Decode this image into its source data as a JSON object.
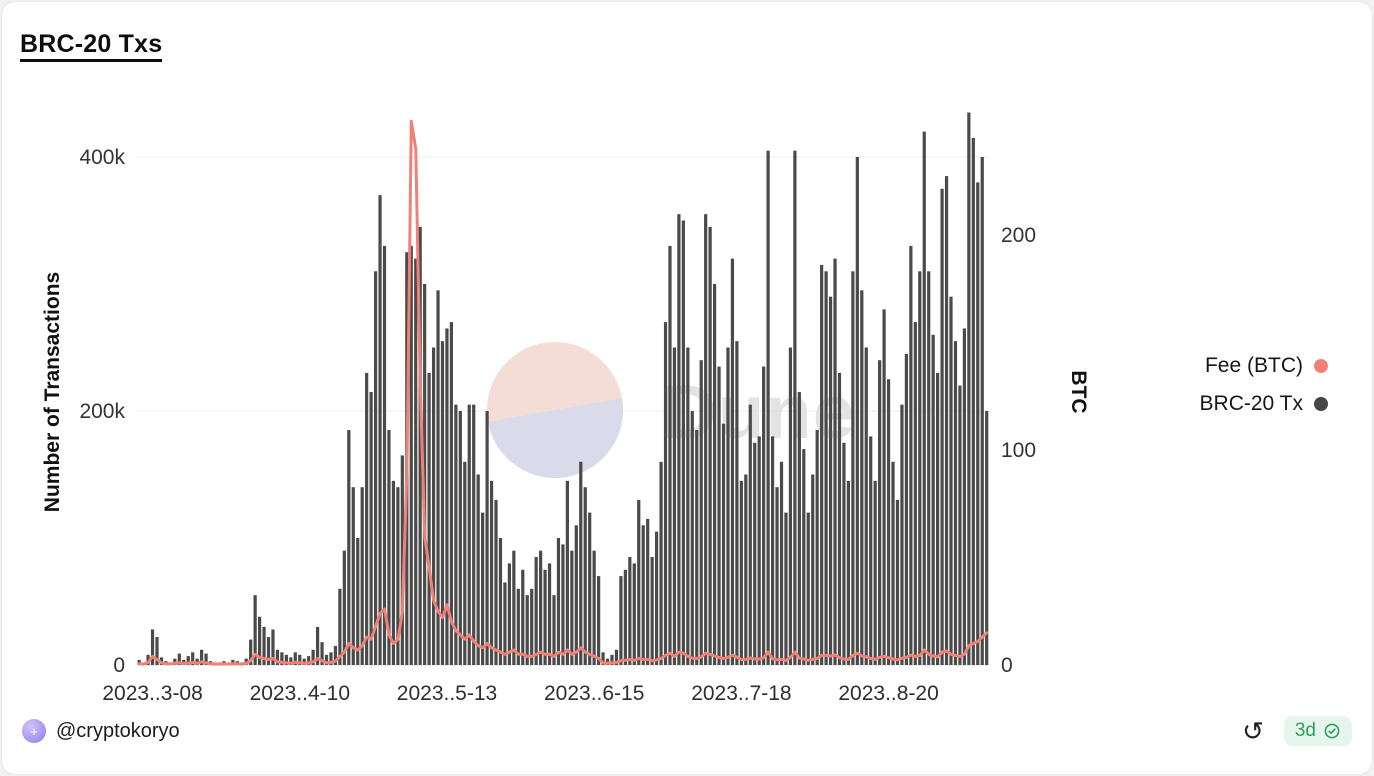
{
  "title": "BRC-20 Txs",
  "chart_data": {
    "type": "bar",
    "subtype": "dual-axis daily bars with overlaid line",
    "title": "BRC-20 Txs",
    "x_start_date": "2023-03-05",
    "x_frequency": "daily",
    "x_ticks": [
      {
        "label": "2023..3-08",
        "day_index": 3
      },
      {
        "label": "2023..4-10",
        "day_index": 36
      },
      {
        "label": "2023..5-13",
        "day_index": 69
      },
      {
        "label": "2023..6-15",
        "day_index": 102
      },
      {
        "label": "2023..7-18",
        "day_index": 135
      },
      {
        "label": "2023..8-20",
        "day_index": 168
      }
    ],
    "left_axis": {
      "label": "Number of Transactions",
      "tick_labels": [
        "0",
        "200k",
        "400k"
      ],
      "tick_values": [
        0,
        200000,
        400000
      ],
      "max": 440000
    },
    "right_axis": {
      "label": "BTC",
      "tick_labels": [
        "0",
        "100",
        "200"
      ],
      "tick_values": [
        0,
        100,
        200
      ],
      "max": 260
    },
    "legend": [
      {
        "label": "Fee (BTC)",
        "color": "#ef8177"
      },
      {
        "label": "BRC-20 Tx",
        "color": "#474747"
      }
    ],
    "grid": {
      "horizontal": true,
      "vertical": false
    },
    "watermark": "Dune",
    "watermark_colors": {
      "circle_top": "#f4ddd6",
      "circle_bottom": "#d9daea"
    },
    "series": [
      {
        "name": "BRC-20 Tx",
        "type": "bar",
        "axis": "left",
        "color": "#4a4a4a",
        "values": [
          4000,
          2000,
          8000,
          28000,
          22000,
          6000,
          3000,
          2000,
          5000,
          9000,
          4000,
          7000,
          10000,
          5000,
          12000,
          9000,
          3000,
          2000,
          2000,
          3000,
          2000,
          4000,
          3000,
          2000,
          5000,
          20000,
          55000,
          38000,
          30000,
          22000,
          28000,
          12000,
          10000,
          8000,
          6000,
          10000,
          8000,
          5000,
          7000,
          12000,
          30000,
          18000,
          8000,
          10000,
          15000,
          60000,
          90000,
          185000,
          140000,
          100000,
          140000,
          230000,
          215000,
          310000,
          370000,
          330000,
          185000,
          145000,
          140000,
          165000,
          325000,
          330000,
          320000,
          345000,
          300000,
          230000,
          250000,
          295000,
          255000,
          265000,
          270000,
          205000,
          200000,
          160000,
          205000,
          205000,
          150000,
          120000,
          200000,
          145000,
          130000,
          100000,
          65000,
          80000,
          90000,
          60000,
          75000,
          55000,
          60000,
          85000,
          90000,
          75000,
          80000,
          55000,
          100000,
          95000,
          145000,
          90000,
          110000,
          160000,
          140000,
          120000,
          90000,
          70000,
          10000,
          5000,
          8000,
          12000,
          70000,
          75000,
          85000,
          80000,
          130000,
          110000,
          115000,
          85000,
          105000,
          160000,
          270000,
          330000,
          250000,
          355000,
          350000,
          250000,
          200000,
          185000,
          240000,
          355000,
          345000,
          300000,
          235000,
          190000,
          250000,
          320000,
          255000,
          145000,
          150000,
          205000,
          175000,
          180000,
          235000,
          405000,
          180000,
          140000,
          160000,
          120000,
          250000,
          405000,
          215000,
          170000,
          120000,
          150000,
          185000,
          315000,
          310000,
          290000,
          320000,
          230000,
          175000,
          145000,
          310000,
          400000,
          295000,
          250000,
          180000,
          145000,
          240000,
          280000,
          225000,
          160000,
          130000,
          205000,
          245000,
          330000,
          270000,
          310000,
          420000,
          310000,
          260000,
          230000,
          375000,
          385000,
          290000,
          255000,
          220000,
          265000,
          435000,
          415000,
          380000,
          400000,
          200000
        ]
      },
      {
        "name": "Fee (BTC)",
        "type": "line",
        "axis": "right",
        "color": "#ef8177",
        "values": [
          0.5,
          0.4,
          1.2,
          4,
          2.5,
          1,
          0.6,
          0.5,
          0.8,
          1,
          0.7,
          0.9,
          1.2,
          0.8,
          1.5,
          1,
          0.5,
          0.4,
          0.4,
          0.5,
          0.4,
          0.6,
          0.5,
          0.4,
          0.8,
          2,
          5,
          3.5,
          3,
          2.5,
          3,
          1.5,
          1.2,
          1,
          0.8,
          1.2,
          1,
          0.8,
          1,
          1.5,
          3,
          2,
          1,
          1.2,
          1.8,
          4,
          6,
          10,
          8,
          7,
          9,
          13,
          12,
          18,
          24,
          26,
          14,
          10,
          12,
          25,
          90,
          253,
          240,
          130,
          60,
          45,
          30,
          25,
          22,
          28,
          20,
          16,
          14,
          12,
          14,
          11,
          9,
          8,
          10,
          8,
          7,
          6,
          5,
          6,
          7,
          5,
          5,
          4,
          4,
          5,
          6,
          5,
          5,
          4,
          6,
          5,
          7,
          5,
          6,
          8,
          6,
          5,
          4,
          3,
          1,
          0.8,
          1,
          1.2,
          2,
          2.2,
          2.5,
          2.2,
          3,
          2.5,
          2.6,
          2,
          2.4,
          3,
          4.5,
          5.5,
          4,
          6,
          5.5,
          4,
          3.2,
          3,
          3.8,
          5.5,
          5,
          4.2,
          3.5,
          3,
          3.6,
          4.5,
          3.6,
          2.5,
          2.6,
          3.2,
          2.8,
          2.8,
          3.4,
          6,
          2.8,
          2.4,
          2.6,
          2.2,
          3.6,
          6,
          3.2,
          2.8,
          2.2,
          2.6,
          3,
          4.5,
          4.4,
          4.2,
          4.6,
          3.4,
          2.8,
          2.6,
          4.4,
          5.5,
          4.2,
          3.8,
          3,
          2.6,
          3.6,
          4,
          3.4,
          2.8,
          2.4,
          3.2,
          3.6,
          4.6,
          4,
          4.4,
          7,
          5,
          4.2,
          3.8,
          6,
          6.5,
          5,
          4.4,
          4,
          5,
          9,
          10,
          11,
          13,
          15
        ]
      }
    ]
  },
  "footer": {
    "author": "@cryptokoryo",
    "refresh_icon": "↺",
    "badge": {
      "text": "3d",
      "color": "#27a25b",
      "background": "#e7f6ed"
    }
  }
}
